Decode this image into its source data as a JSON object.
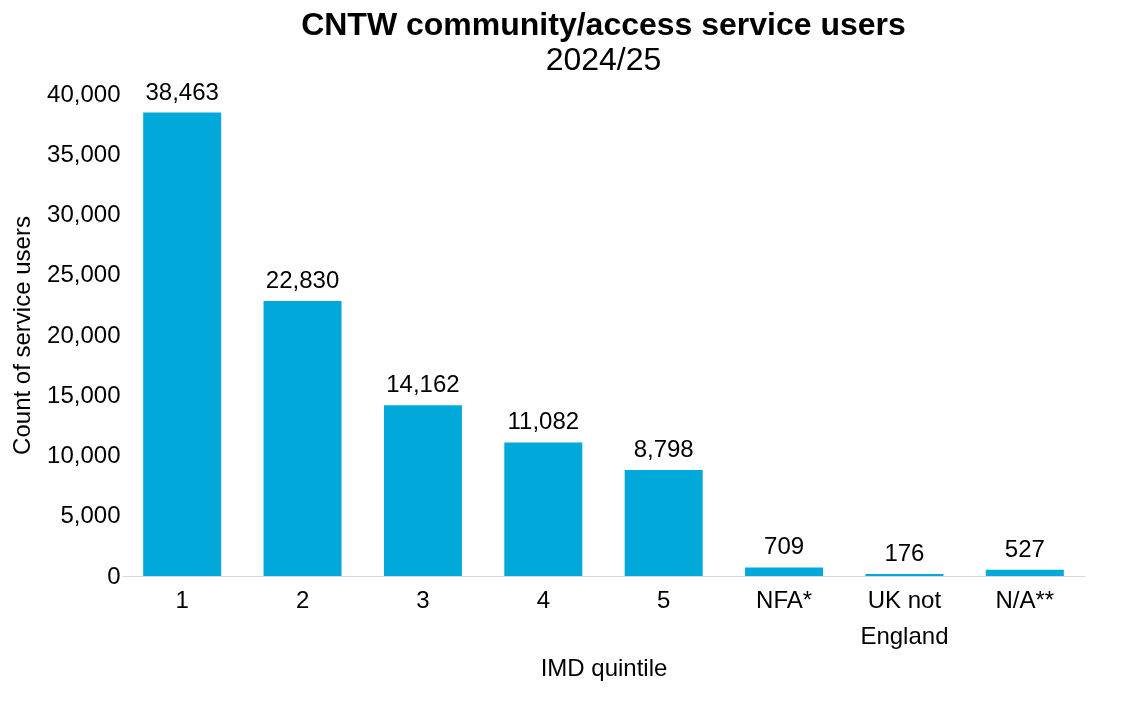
{
  "chart_data": {
    "type": "bar",
    "title": "CNTW community/access service users",
    "subtitle": "2024/25",
    "xlabel": "IMD quintile",
    "ylabel": "Count of service users",
    "categories": [
      "1",
      "2",
      "3",
      "4",
      "5",
      "NFA*",
      "UK not England",
      "N/A**"
    ],
    "values": [
      38463,
      22830,
      14162,
      11082,
      8798,
      709,
      176,
      527
    ],
    "value_labels": [
      "38,463",
      "22,830",
      "14,162",
      "11,082",
      "8,798",
      "709",
      "176",
      "527"
    ],
    "color": "#00a9d9",
    "ylim": [
      0,
      40000
    ],
    "yticks": [
      0,
      {
        "value": 5000,
        "label": "5,000"
      },
      {
        "value": 10000,
        "label": "10,000"
      },
      {
        "value": 15000,
        "label": "15,000"
      },
      {
        "value": 20000,
        "label": "20,000"
      },
      {
        "value": 25000,
        "label": "25,000"
      },
      {
        "value": 30000,
        "label": "30,000"
      },
      {
        "value": 35000,
        "label": "35,000"
      },
      {
        "value": 40000,
        "label": "40,000"
      }
    ],
    "grid": false
  }
}
